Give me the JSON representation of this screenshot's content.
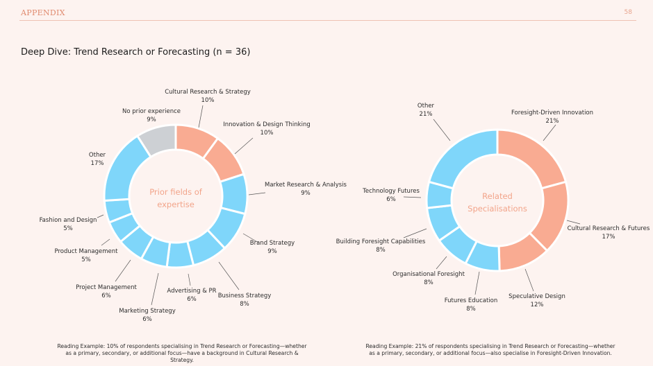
{
  "header": {
    "section": "APPENDIX",
    "page_number": "58"
  },
  "title": "Deep Dive: Trend Research or Forecasting (n = 36)",
  "colors": {
    "blue": "#7fd6fa",
    "salmon": "#f9ab92",
    "grey": "#cdd0d4",
    "leader": "#555555"
  },
  "chart_data": [
    {
      "type": "pie",
      "title": "Prior fields of expertise",
      "center_label": [
        "Prior fields of",
        "expertise"
      ],
      "slices": [
        {
          "label": "Cultural Research & Strategy",
          "value": "10%",
          "pct": 10,
          "color": "salmon"
        },
        {
          "label": "Innovation & Design Thinking",
          "value": "10%",
          "pct": 10,
          "color": "salmon"
        },
        {
          "label": "Market Research & Analysis",
          "value": "9%",
          "pct": 9,
          "color": "blue"
        },
        {
          "label": "Brand Strategy",
          "value": "9%",
          "pct": 9,
          "color": "blue"
        },
        {
          "label": "Business Strategy",
          "value": "8%",
          "pct": 8,
          "color": "blue"
        },
        {
          "label": "Advertising & PR",
          "value": "6%",
          "pct": 6,
          "color": "blue"
        },
        {
          "label": "Marketing Strategy",
          "value": "6%",
          "pct": 6,
          "color": "blue"
        },
        {
          "label": "Project Management",
          "value": "6%",
          "pct": 6,
          "color": "blue"
        },
        {
          "label": "Product Management",
          "value": "5%",
          "pct": 5,
          "color": "blue"
        },
        {
          "label": "Fashion and Design",
          "value": "5%",
          "pct": 5,
          "color": "blue"
        },
        {
          "label": "Other",
          "value": "17%",
          "pct": 17,
          "color": "blue"
        },
        {
          "label": "No prior experience",
          "value": "9%",
          "pct": 9,
          "color": "grey"
        }
      ],
      "note": "Reading Example: 10% of respondents specialising in Trend Research or Forecasting—whether as a primary, secondary, or additional focus—have a background in Cultural Research & Strategy."
    },
    {
      "type": "pie",
      "title": "Related Specialisations",
      "center_label": [
        "Related",
        "Specialisations"
      ],
      "slices": [
        {
          "label": "Foresight-Driven Innovation",
          "value": "21%",
          "pct": 21,
          "color": "salmon"
        },
        {
          "label": "Cultural Research & Futures",
          "value": "17%",
          "pct": 17,
          "color": "salmon"
        },
        {
          "label": "Speculative Design",
          "value": "12%",
          "pct": 12,
          "color": "salmon"
        },
        {
          "label": "Futures Education",
          "value": "8%",
          "pct": 8,
          "color": "blue"
        },
        {
          "label": "Organisational Foresight",
          "value": "8%",
          "pct": 8,
          "color": "blue"
        },
        {
          "label": "Building Foresight Capabilities",
          "value": "8%",
          "pct": 8,
          "color": "blue"
        },
        {
          "label": "Technology Futures",
          "value": "6%",
          "pct": 6,
          "color": "blue"
        },
        {
          "label": "Other",
          "value": "21%",
          "pct": 21,
          "color": "blue"
        }
      ],
      "note": "Reading Example: 21% of respondents specialising in Trend Research or Forecasting—whether as a primary, secondary, or additional focus—also specialise in Foresight-Driven Innovation."
    }
  ]
}
